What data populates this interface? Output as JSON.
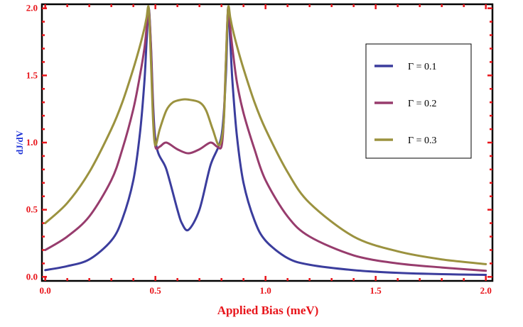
{
  "chart_data": {
    "type": "line",
    "title": "",
    "xlabel": "Applied Bias (meV)",
    "ylabel": "dJ/dV",
    "xlim": [
      -0.015,
      2.03
    ],
    "ylim": [
      -0.03,
      2.03
    ],
    "xticks": [
      0.0,
      0.5,
      1.0,
      1.5,
      2.0
    ],
    "xtick_labels": [
      "0.0",
      "0.5",
      "1.0",
      "1.5",
      "2.0"
    ],
    "yticks": [
      0.0,
      0.5,
      1.0,
      1.5,
      2.0
    ],
    "ytick_labels": [
      "0.0",
      "0.5",
      "1.0",
      "1.5",
      "2.0"
    ],
    "grid": false,
    "legend_position": "right",
    "series": [
      {
        "name": "Γ = 0.1",
        "color": "#3b3d9d",
        "x": [
          0.0,
          0.1,
          0.2,
          0.3,
          0.35,
          0.4,
          0.43,
          0.45,
          0.46,
          0.47,
          0.48,
          0.5,
          0.55,
          0.6,
          0.62,
          0.65,
          0.7,
          0.75,
          0.8,
          0.82,
          0.83,
          0.84,
          0.85,
          0.87,
          0.9,
          0.95,
          1.0,
          1.1,
          1.2,
          1.4,
          1.6,
          1.8,
          2.0
        ],
        "y": [
          0.05,
          0.08,
          0.13,
          0.27,
          0.43,
          0.72,
          1.07,
          1.45,
          1.75,
          2.0,
          1.72,
          1.02,
          0.8,
          0.5,
          0.4,
          0.35,
          0.5,
          0.83,
          1.05,
          1.5,
          2.0,
          1.75,
          1.45,
          1.05,
          0.7,
          0.42,
          0.27,
          0.14,
          0.09,
          0.05,
          0.03,
          0.02,
          0.015
        ]
      },
      {
        "name": "Γ = 0.2",
        "color": "#973c6d",
        "x": [
          0.0,
          0.1,
          0.2,
          0.3,
          0.35,
          0.4,
          0.43,
          0.45,
          0.46,
          0.47,
          0.48,
          0.49,
          0.5,
          0.52,
          0.55,
          0.6,
          0.65,
          0.7,
          0.75,
          0.78,
          0.8,
          0.81,
          0.82,
          0.83,
          0.84,
          0.85,
          0.87,
          0.9,
          0.95,
          1.0,
          1.1,
          1.2,
          1.4,
          1.6,
          1.8,
          2.0
        ],
        "y": [
          0.2,
          0.3,
          0.45,
          0.72,
          0.95,
          1.25,
          1.5,
          1.7,
          1.85,
          2.0,
          1.7,
          1.2,
          0.97,
          0.97,
          1.0,
          0.95,
          0.92,
          0.95,
          1.0,
          0.97,
          0.97,
          1.15,
          1.6,
          2.0,
          1.85,
          1.7,
          1.45,
          1.22,
          0.95,
          0.72,
          0.45,
          0.3,
          0.16,
          0.1,
          0.07,
          0.045
        ]
      },
      {
        "name": "Γ = 0.3",
        "color": "#9b923f",
        "x": [
          0.0,
          0.1,
          0.2,
          0.3,
          0.35,
          0.4,
          0.43,
          0.45,
          0.46,
          0.47,
          0.48,
          0.49,
          0.5,
          0.52,
          0.55,
          0.58,
          0.62,
          0.65,
          0.7,
          0.73,
          0.76,
          0.79,
          0.81,
          0.82,
          0.83,
          0.84,
          0.85,
          0.87,
          0.9,
          0.95,
          1.0,
          1.1,
          1.2,
          1.4,
          1.6,
          1.8,
          2.0
        ],
        "y": [
          0.4,
          0.55,
          0.78,
          1.1,
          1.3,
          1.55,
          1.72,
          1.85,
          1.93,
          2.0,
          1.6,
          1.15,
          0.98,
          1.1,
          1.24,
          1.3,
          1.32,
          1.32,
          1.3,
          1.24,
          1.1,
          0.98,
          1.15,
          1.6,
          2.0,
          1.93,
          1.85,
          1.72,
          1.55,
          1.3,
          1.1,
          0.78,
          0.55,
          0.3,
          0.19,
          0.13,
          0.095
        ]
      }
    ]
  }
}
